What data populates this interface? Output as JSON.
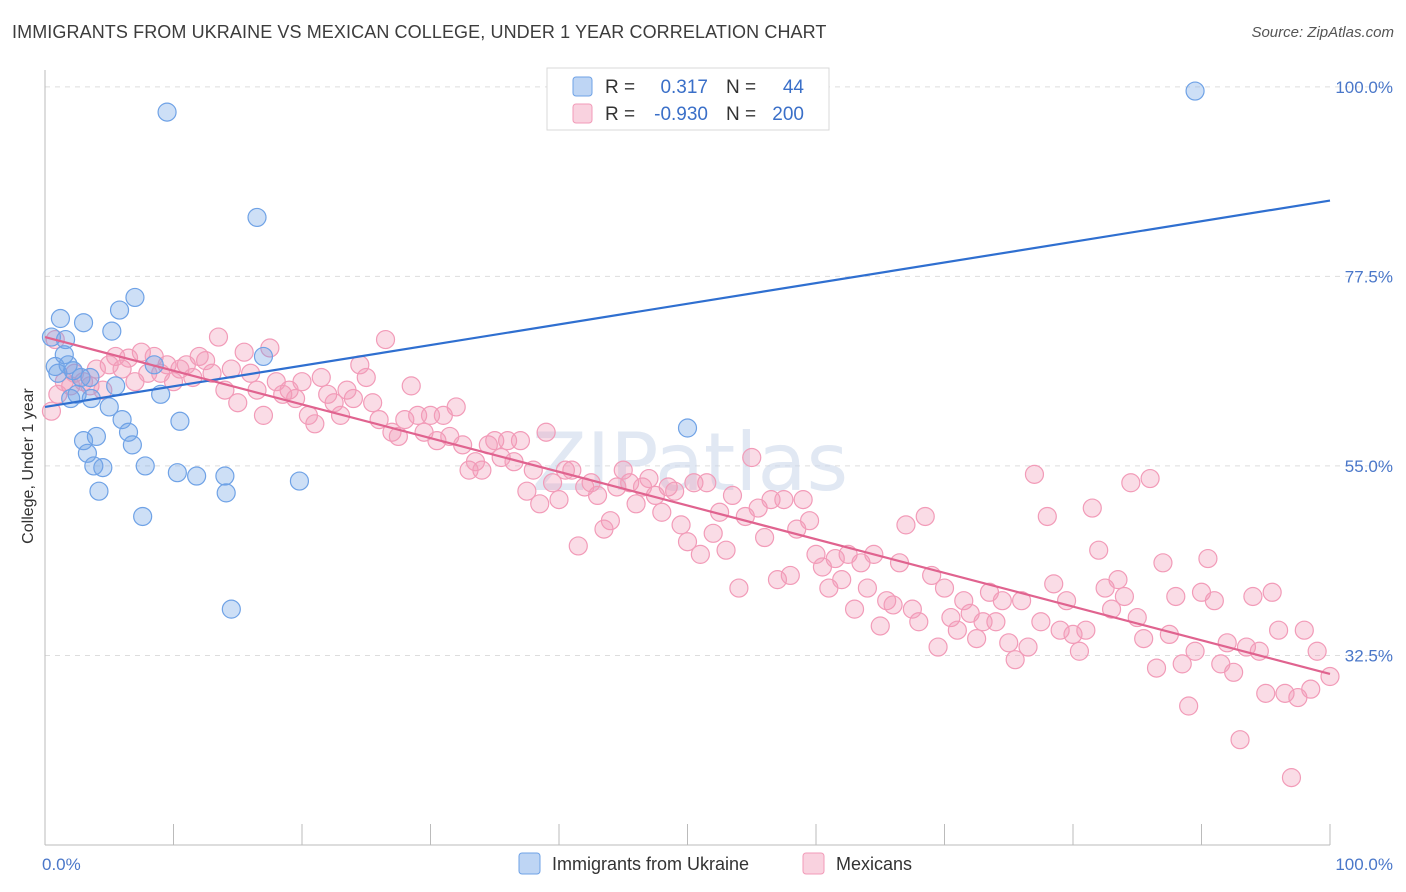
{
  "title": "IMMIGRANTS FROM UKRAINE VS MEXICAN COLLEGE, UNDER 1 YEAR CORRELATION CHART",
  "source": "Source: ZipAtlas.com",
  "watermark": "ZIPatlas",
  "colors": {
    "ukraine": "#6fa2e6",
    "ukraine_line": "#2f6fd0",
    "mexicans": "#f29bb8",
    "mexicans_line": "#e0638f",
    "grid": "#dddddd",
    "tick_label": "#4a77c9"
  },
  "legend": {
    "r_label": "R =",
    "n_label": "N =",
    "rows": [
      {
        "r": "0.317",
        "n": "44"
      },
      {
        "r": "-0.930",
        "n": "200"
      }
    ]
  },
  "bottom_legend": [
    "Immigrants from Ukraine",
    "Mexicans"
  ],
  "chart_data": {
    "type": "scatter",
    "title": "IMMIGRANTS FROM UKRAINE VS MEXICAN COLLEGE, UNDER 1 YEAR CORRELATION CHART",
    "xlabel": "",
    "ylabel": "College, Under 1 year",
    "xlim": [
      0,
      100
    ],
    "ylim": [
      10,
      102
    ],
    "x_tick_labels": [
      "0.0%",
      "100.0%"
    ],
    "y_ticks": [
      32.5,
      55.0,
      77.5,
      100.0
    ],
    "y_tick_labels": [
      "32.5%",
      "55.0%",
      "77.5%",
      "100.0%"
    ],
    "grid": true,
    "legend_position": "top-center",
    "series": [
      {
        "name": "Immigrants from Ukraine",
        "trend": {
          "x": [
            0,
            100
          ],
          "y": [
            62.0,
            86.5
          ]
        },
        "points": [
          [
            0.5,
            70.3
          ],
          [
            0.8,
            66.8
          ],
          [
            1.0,
            66.0
          ],
          [
            1.2,
            72.5
          ],
          [
            1.5,
            68.2
          ],
          [
            1.6,
            70.0
          ],
          [
            1.8,
            67.0
          ],
          [
            2.0,
            63.0
          ],
          [
            2.2,
            66.3
          ],
          [
            2.5,
            63.5
          ],
          [
            2.8,
            65.5
          ],
          [
            3.0,
            72.0
          ],
          [
            3.0,
            58.0
          ],
          [
            3.3,
            56.5
          ],
          [
            3.5,
            65.5
          ],
          [
            3.6,
            63.0
          ],
          [
            3.8,
            55.0
          ],
          [
            4.0,
            58.5
          ],
          [
            4.2,
            52.0
          ],
          [
            4.5,
            54.8
          ],
          [
            5.0,
            62.0
          ],
          [
            5.2,
            71.0
          ],
          [
            5.5,
            64.5
          ],
          [
            5.8,
            73.5
          ],
          [
            6.0,
            60.5
          ],
          [
            6.5,
            59.0
          ],
          [
            6.8,
            57.5
          ],
          [
            7.0,
            75.0
          ],
          [
            7.6,
            49.0
          ],
          [
            7.8,
            55.0
          ],
          [
            8.5,
            67.0
          ],
          [
            9.0,
            63.5
          ],
          [
            9.5,
            97.0
          ],
          [
            10.3,
            54.2
          ],
          [
            10.5,
            60.3
          ],
          [
            11.8,
            53.8
          ],
          [
            14.0,
            53.8
          ],
          [
            14.1,
            51.8
          ],
          [
            14.5,
            38.0
          ],
          [
            16.5,
            84.5
          ],
          [
            17.0,
            68.0
          ],
          [
            19.8,
            53.2
          ],
          [
            50.0,
            59.5
          ],
          [
            89.5,
            99.5
          ]
        ]
      },
      {
        "name": "Mexicans",
        "trend": {
          "x": [
            0,
            100
          ],
          "y": [
            70.3,
            30.3
          ]
        },
        "points": [
          [
            0.5,
            61.5
          ],
          [
            0.8,
            70.0
          ],
          [
            1.0,
            63.5
          ],
          [
            1.5,
            65.0
          ],
          [
            2.0,
            64.5
          ],
          [
            2.3,
            66.0
          ],
          [
            3.0,
            65.0
          ],
          [
            3.5,
            64.5
          ],
          [
            4.0,
            66.5
          ],
          [
            4.5,
            64.0
          ],
          [
            5.0,
            67.0
          ],
          [
            5.5,
            68.0
          ],
          [
            6.0,
            66.5
          ],
          [
            6.5,
            67.8
          ],
          [
            7.0,
            65.0
          ],
          [
            7.5,
            68.5
          ],
          [
            8.0,
            66.0
          ],
          [
            8.5,
            68.0
          ],
          [
            9.0,
            66.0
          ],
          [
            9.5,
            67.0
          ],
          [
            10.0,
            65.0
          ],
          [
            10.5,
            66.5
          ],
          [
            11.0,
            67.0
          ],
          [
            11.5,
            65.5
          ],
          [
            12.0,
            68.0
          ],
          [
            12.5,
            67.5
          ],
          [
            13.0,
            66.0
          ],
          [
            13.5,
            70.3
          ],
          [
            14.0,
            64.0
          ],
          [
            14.5,
            66.5
          ],
          [
            15.0,
            62.5
          ],
          [
            15.5,
            68.5
          ],
          [
            16.0,
            66.0
          ],
          [
            16.5,
            64.0
          ],
          [
            17.0,
            61.0
          ],
          [
            17.5,
            69.0
          ],
          [
            18.0,
            65.0
          ],
          [
            18.5,
            63.5
          ],
          [
            19.0,
            64.0
          ],
          [
            19.5,
            63.0
          ],
          [
            20.0,
            65.0
          ],
          [
            20.5,
            61.0
          ],
          [
            21.0,
            60.0
          ],
          [
            21.5,
            65.5
          ],
          [
            22.0,
            63.5
          ],
          [
            22.5,
            62.5
          ],
          [
            23.0,
            61.0
          ],
          [
            23.5,
            64.0
          ],
          [
            24.0,
            63.0
          ],
          [
            24.5,
            67.0
          ],
          [
            25.0,
            65.5
          ],
          [
            25.5,
            62.5
          ],
          [
            26.0,
            60.5
          ],
          [
            26.5,
            70.0
          ],
          [
            27.0,
            59.0
          ],
          [
            27.5,
            58.5
          ],
          [
            28.0,
            60.5
          ],
          [
            28.5,
            64.5
          ],
          [
            29.0,
            61.0
          ],
          [
            29.5,
            59.0
          ],
          [
            30.0,
            61.0
          ],
          [
            30.5,
            58.0
          ],
          [
            31.0,
            61.0
          ],
          [
            31.5,
            58.5
          ],
          [
            32.0,
            62.0
          ],
          [
            32.5,
            57.5
          ],
          [
            33.0,
            54.5
          ],
          [
            33.5,
            55.5
          ],
          [
            34.0,
            54.5
          ],
          [
            34.5,
            57.5
          ],
          [
            35.0,
            58.0
          ],
          [
            35.5,
            56.0
          ],
          [
            36.0,
            58.0
          ],
          [
            36.5,
            55.5
          ],
          [
            37.0,
            58.0
          ],
          [
            37.5,
            52.0
          ],
          [
            38.0,
            54.5
          ],
          [
            38.5,
            50.5
          ],
          [
            39.0,
            59.0
          ],
          [
            39.5,
            53.0
          ],
          [
            40.0,
            51.0
          ],
          [
            40.5,
            54.5
          ],
          [
            41.0,
            54.5
          ],
          [
            41.5,
            45.5
          ],
          [
            42.0,
            52.5
          ],
          [
            42.5,
            53.0
          ],
          [
            43.0,
            51.5
          ],
          [
            43.5,
            47.5
          ],
          [
            44.0,
            48.5
          ],
          [
            44.5,
            52.5
          ],
          [
            45.0,
            54.5
          ],
          [
            45.5,
            53.0
          ],
          [
            46.0,
            50.5
          ],
          [
            46.5,
            52.5
          ],
          [
            47.0,
            53.5
          ],
          [
            47.5,
            51.5
          ],
          [
            48.0,
            49.5
          ],
          [
            48.5,
            52.5
          ],
          [
            49.0,
            52.0
          ],
          [
            49.5,
            48.0
          ],
          [
            50.0,
            46.0
          ],
          [
            50.5,
            53.0
          ],
          [
            51.0,
            44.5
          ],
          [
            51.5,
            53.0
          ],
          [
            52.0,
            47.0
          ],
          [
            52.5,
            49.5
          ],
          [
            53.0,
            45.0
          ],
          [
            53.5,
            51.5
          ],
          [
            54.0,
            40.5
          ],
          [
            54.5,
            49.0
          ],
          [
            55.0,
            56.0
          ],
          [
            55.5,
            50.0
          ],
          [
            56.0,
            46.5
          ],
          [
            56.5,
            51.0
          ],
          [
            57.0,
            41.5
          ],
          [
            57.5,
            51.0
          ],
          [
            58.0,
            42.0
          ],
          [
            58.5,
            47.5
          ],
          [
            59.0,
            51.0
          ],
          [
            59.5,
            48.5
          ],
          [
            60.0,
            44.5
          ],
          [
            60.5,
            43.0
          ],
          [
            61.0,
            40.5
          ],
          [
            61.5,
            44.0
          ],
          [
            62.0,
            41.5
          ],
          [
            62.5,
            44.5
          ],
          [
            63.0,
            38.0
          ],
          [
            63.5,
            43.5
          ],
          [
            64.0,
            40.5
          ],
          [
            64.5,
            44.5
          ],
          [
            65.0,
            36.0
          ],
          [
            65.5,
            39.0
          ],
          [
            66.0,
            38.5
          ],
          [
            66.5,
            43.5
          ],
          [
            67.0,
            48.0
          ],
          [
            67.5,
            38.0
          ],
          [
            68.0,
            36.5
          ],
          [
            68.5,
            49.0
          ],
          [
            69.0,
            42.0
          ],
          [
            69.5,
            33.5
          ],
          [
            70.0,
            40.5
          ],
          [
            70.5,
            37.0
          ],
          [
            71.0,
            35.5
          ],
          [
            71.5,
            39.0
          ],
          [
            72.0,
            37.5
          ],
          [
            72.5,
            34.5
          ],
          [
            73.0,
            36.5
          ],
          [
            73.5,
            40.0
          ],
          [
            74.0,
            36.5
          ],
          [
            74.5,
            39.0
          ],
          [
            75.0,
            34.0
          ],
          [
            75.5,
            32.0
          ],
          [
            76.0,
            39.0
          ],
          [
            76.5,
            33.5
          ],
          [
            77.0,
            54.0
          ],
          [
            77.5,
            36.5
          ],
          [
            78.0,
            49.0
          ],
          [
            78.5,
            41.0
          ],
          [
            79.0,
            35.5
          ],
          [
            79.5,
            39.0
          ],
          [
            80.0,
            35.0
          ],
          [
            80.5,
            33.0
          ],
          [
            81.0,
            35.5
          ],
          [
            81.5,
            50.0
          ],
          [
            82.0,
            45.0
          ],
          [
            82.5,
            40.5
          ],
          [
            83.0,
            38.0
          ],
          [
            83.5,
            41.5
          ],
          [
            84.0,
            39.5
          ],
          [
            84.5,
            53.0
          ],
          [
            85.0,
            37.0
          ],
          [
            85.5,
            34.5
          ],
          [
            86.0,
            53.5
          ],
          [
            86.5,
            31.0
          ],
          [
            87.0,
            43.5
          ],
          [
            87.5,
            35.0
          ],
          [
            88.0,
            39.5
          ],
          [
            88.5,
            31.5
          ],
          [
            89.0,
            26.5
          ],
          [
            89.5,
            33.0
          ],
          [
            90.0,
            40.0
          ],
          [
            90.5,
            44.0
          ],
          [
            91.0,
            39.0
          ],
          [
            91.5,
            31.5
          ],
          [
            92.0,
            34.0
          ],
          [
            92.5,
            30.5
          ],
          [
            93.0,
            22.5
          ],
          [
            93.5,
            33.5
          ],
          [
            94.0,
            39.5
          ],
          [
            94.5,
            33.0
          ],
          [
            95.0,
            28.0
          ],
          [
            95.5,
            40.0
          ],
          [
            96.0,
            35.5
          ],
          [
            96.5,
            28.0
          ],
          [
            97.0,
            18.0
          ],
          [
            97.5,
            27.5
          ],
          [
            98.0,
            35.5
          ],
          [
            98.5,
            28.5
          ],
          [
            99.0,
            33.0
          ],
          [
            100.0,
            30.0
          ]
        ]
      }
    ]
  }
}
